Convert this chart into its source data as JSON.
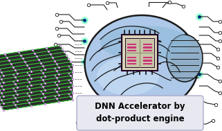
{
  "text_line1": "DNN Accelerator by",
  "text_line2": "dot-product engine",
  "bg_color": "#ffffff",
  "brain_fill": "#adc8e8",
  "brain_fill2": "#bdd4f0",
  "brain_dark": "#7098c0",
  "brain_outline": "#1a1a1a",
  "chip_bg": "#e0dfc8",
  "chip_border": "#550055",
  "chip_pin_color": "#111111",
  "chip_pink": "#cc3377",
  "chip_pink2": "#dd4488",
  "circuit_color": "#111111",
  "node_glow": "#44ffaa",
  "node_fill": "#003399",
  "array_green": "#33cc33",
  "array_dark": "#222222",
  "array_grey": "#444444",
  "array_purple": "#aa44cc",
  "array_white": "#dddddd",
  "label_box": "#e8e8f0",
  "label_border": "#aaaacc",
  "label_text": "#000000",
  "figsize": [
    3.21,
    1.89
  ],
  "dpi": 100
}
